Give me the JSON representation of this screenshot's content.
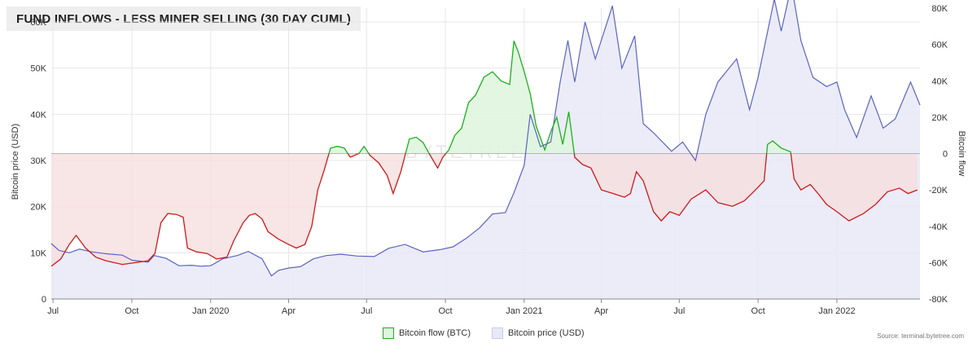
{
  "title": "FUND INFLOWS - LESS MINER SELLING (30 DAY CUML)",
  "watermark": "BYTETREE",
  "source": "Source: terminal.bytetree.com",
  "legend": {
    "flow_label": "Bitcoin flow (BTC)",
    "price_label": "Bitcoin price (USD)"
  },
  "colors": {
    "positive": "#1fae1f",
    "negative": "#cc1a1a",
    "price": "#5b63c0",
    "price_fill": "#e8e9f7",
    "pos_fill": "#dff5df",
    "neg_fill": "#f6dfdf"
  },
  "chart_data": {
    "type": "line",
    "title": "FUND INFLOWS - LESS MINER SELLING (30 DAY CUML)",
    "x_ticks": [
      "Jul",
      "Oct",
      "Jan 2020",
      "Apr",
      "Jul",
      "Oct",
      "Jan 2021",
      "Apr",
      "Jul",
      "Oct",
      "Jan 2022"
    ],
    "x_tick_dates": [
      "2019-07-01",
      "2019-10-01",
      "2020-01-01",
      "2020-04-01",
      "2020-07-01",
      "2020-10-01",
      "2021-01-01",
      "2021-04-01",
      "2021-07-01",
      "2021-10-01",
      "2022-01-01"
    ],
    "x_range": [
      "2019-06-29",
      "2022-04-08"
    ],
    "left_axis": {
      "label": "Bitcoin price (USD)",
      "ticks": [
        "0",
        "10K",
        "20K",
        "30K",
        "40K",
        "50K",
        "60K"
      ],
      "range": [
        0,
        63000
      ]
    },
    "right_axis": {
      "label": "Bitcoin flow",
      "ticks": [
        "-80K",
        "-60K",
        "-40K",
        "-20K",
        "0",
        "20K",
        "40K",
        "60K",
        "80K"
      ],
      "range": [
        -80000,
        80000
      ]
    },
    "grid": true,
    "legend_position": "bottom-center",
    "series": [
      {
        "name": "Bitcoin flow (BTC)",
        "axis": "right",
        "points": [
          [
            "2019-06-29",
            -62000
          ],
          [
            "2019-07-10",
            -58000
          ],
          [
            "2019-07-20",
            -50000
          ],
          [
            "2019-07-28",
            -45000
          ],
          [
            "2019-08-08",
            -52000
          ],
          [
            "2019-08-20",
            -57000
          ],
          [
            "2019-09-01",
            -59000
          ],
          [
            "2019-09-20",
            -61000
          ],
          [
            "2019-10-05",
            -60000
          ],
          [
            "2019-10-20",
            -59000
          ],
          [
            "2019-10-28",
            -55000
          ],
          [
            "2019-11-04",
            -38000
          ],
          [
            "2019-11-12",
            -33000
          ],
          [
            "2019-11-22",
            -33500
          ],
          [
            "2019-11-30",
            -35000
          ],
          [
            "2019-12-05",
            -52000
          ],
          [
            "2019-12-15",
            -54000
          ],
          [
            "2019-12-28",
            -55000
          ],
          [
            "2020-01-08",
            -58000
          ],
          [
            "2020-01-20",
            -57000
          ],
          [
            "2020-01-28",
            -48000
          ],
          [
            "2020-02-08",
            -38000
          ],
          [
            "2020-02-15",
            -34000
          ],
          [
            "2020-02-22",
            -33000
          ],
          [
            "2020-03-01",
            -36000
          ],
          [
            "2020-03-08",
            -43000
          ],
          [
            "2020-03-20",
            -47000
          ],
          [
            "2020-04-01",
            -50000
          ],
          [
            "2020-04-10",
            -52000
          ],
          [
            "2020-04-20",
            -50000
          ],
          [
            "2020-04-28",
            -40000
          ],
          [
            "2020-05-05",
            -20000
          ],
          [
            "2020-05-12",
            -10000
          ],
          [
            "2020-05-20",
            3000
          ],
          [
            "2020-05-28",
            4000
          ],
          [
            "2020-06-05",
            3000
          ],
          [
            "2020-06-12",
            -2000
          ],
          [
            "2020-06-22",
            0
          ],
          [
            "2020-06-28",
            4000
          ],
          [
            "2020-07-05",
            -1000
          ],
          [
            "2020-07-15",
            -5000
          ],
          [
            "2020-07-25",
            -12000
          ],
          [
            "2020-08-01",
            -22000
          ],
          [
            "2020-08-10",
            -10000
          ],
          [
            "2020-08-20",
            8000
          ],
          [
            "2020-08-28",
            9000
          ],
          [
            "2020-09-05",
            6000
          ],
          [
            "2020-09-12",
            0
          ],
          [
            "2020-09-22",
            -8000
          ],
          [
            "2020-09-28",
            -2000
          ],
          [
            "2020-10-05",
            2000
          ],
          [
            "2020-10-12",
            10000
          ],
          [
            "2020-10-20",
            14000
          ],
          [
            "2020-10-28",
            28000
          ],
          [
            "2020-11-05",
            32000
          ],
          [
            "2020-11-15",
            42000
          ],
          [
            "2020-11-25",
            45000
          ],
          [
            "2020-12-05",
            40000
          ],
          [
            "2020-12-15",
            38000
          ],
          [
            "2020-12-20",
            62000
          ],
          [
            "2020-12-25",
            56000
          ],
          [
            "2021-01-01",
            45000
          ],
          [
            "2021-01-08",
            33000
          ],
          [
            "2021-01-15",
            15000
          ],
          [
            "2021-01-25",
            2000
          ],
          [
            "2021-02-01",
            12000
          ],
          [
            "2021-02-08",
            20000
          ],
          [
            "2021-02-15",
            5000
          ],
          [
            "2021-02-22",
            23000
          ],
          [
            "2021-03-01",
            -2000
          ],
          [
            "2021-03-10",
            -6000
          ],
          [
            "2021-03-20",
            -8000
          ],
          [
            "2021-04-01",
            -20000
          ],
          [
            "2021-04-15",
            -22000
          ],
          [
            "2021-04-28",
            -24000
          ],
          [
            "2021-05-05",
            -22000
          ],
          [
            "2021-05-12",
            -10000
          ],
          [
            "2021-05-20",
            -15000
          ],
          [
            "2021-06-01",
            -32000
          ],
          [
            "2021-06-10",
            -37000
          ],
          [
            "2021-06-20",
            -32000
          ],
          [
            "2021-07-01",
            -34000
          ],
          [
            "2021-07-15",
            -25000
          ],
          [
            "2021-08-01",
            -20000
          ],
          [
            "2021-08-15",
            -27000
          ],
          [
            "2021-09-01",
            -29000
          ],
          [
            "2021-09-15",
            -26000
          ],
          [
            "2021-09-28",
            -20000
          ],
          [
            "2021-10-08",
            -15000
          ],
          [
            "2021-10-12",
            5000
          ],
          [
            "2021-10-18",
            7000
          ],
          [
            "2021-10-28",
            3000
          ],
          [
            "2021-11-08",
            1000
          ],
          [
            "2021-11-12",
            -14000
          ],
          [
            "2021-11-20",
            -20000
          ],
          [
            "2021-12-01",
            -17000
          ],
          [
            "2021-12-10",
            -22000
          ],
          [
            "2021-12-20",
            -28000
          ],
          [
            "2022-01-01",
            -32000
          ],
          [
            "2022-01-15",
            -37000
          ],
          [
            "2022-02-01",
            -33000
          ],
          [
            "2022-02-15",
            -28000
          ],
          [
            "2022-03-01",
            -21000
          ],
          [
            "2022-03-15",
            -19000
          ],
          [
            "2022-03-25",
            -22000
          ],
          [
            "2022-04-05",
            -20000
          ]
        ]
      },
      {
        "name": "Bitcoin price (USD)",
        "axis": "left",
        "points": [
          [
            "2019-06-29",
            12000
          ],
          [
            "2019-07-08",
            10500
          ],
          [
            "2019-07-20",
            10000
          ],
          [
            "2019-08-01",
            10800
          ],
          [
            "2019-08-15",
            10200
          ],
          [
            "2019-09-01",
            9800
          ],
          [
            "2019-09-20",
            9500
          ],
          [
            "2019-10-01",
            8400
          ],
          [
            "2019-10-20",
            8000
          ],
          [
            "2019-10-27",
            9400
          ],
          [
            "2019-11-10",
            8800
          ],
          [
            "2019-11-25",
            7200
          ],
          [
            "2019-12-10",
            7300
          ],
          [
            "2019-12-20",
            7100
          ],
          [
            "2020-01-01",
            7200
          ],
          [
            "2020-01-15",
            8700
          ],
          [
            "2020-02-01",
            9400
          ],
          [
            "2020-02-14",
            10300
          ],
          [
            "2020-03-01",
            8700
          ],
          [
            "2020-03-12",
            5000
          ],
          [
            "2020-03-20",
            6200
          ],
          [
            "2020-04-01",
            6700
          ],
          [
            "2020-04-15",
            7000
          ],
          [
            "2020-04-30",
            8700
          ],
          [
            "2020-05-15",
            9400
          ],
          [
            "2020-06-01",
            9700
          ],
          [
            "2020-06-20",
            9300
          ],
          [
            "2020-07-10",
            9200
          ],
          [
            "2020-07-27",
            11000
          ],
          [
            "2020-08-15",
            11800
          ],
          [
            "2020-09-05",
            10200
          ],
          [
            "2020-09-25",
            10700
          ],
          [
            "2020-10-10",
            11300
          ],
          [
            "2020-10-25",
            13100
          ],
          [
            "2020-11-10",
            15400
          ],
          [
            "2020-11-25",
            18400
          ],
          [
            "2020-12-10",
            18700
          ],
          [
            "2020-12-20",
            23000
          ],
          [
            "2021-01-01",
            29000
          ],
          [
            "2021-01-08",
            40000
          ],
          [
            "2021-01-20",
            33000
          ],
          [
            "2021-02-01",
            34000
          ],
          [
            "2021-02-12",
            47000
          ],
          [
            "2021-02-21",
            56000
          ],
          [
            "2021-03-01",
            47000
          ],
          [
            "2021-03-13",
            60000
          ],
          [
            "2021-03-25",
            52000
          ],
          [
            "2021-04-14",
            63500
          ],
          [
            "2021-04-25",
            50000
          ],
          [
            "2021-05-10",
            57000
          ],
          [
            "2021-05-20",
            38000
          ],
          [
            "2021-06-01",
            36000
          ],
          [
            "2021-06-22",
            32000
          ],
          [
            "2021-07-05",
            34000
          ],
          [
            "2021-07-20",
            30000
          ],
          [
            "2021-08-01",
            40000
          ],
          [
            "2021-08-15",
            47000
          ],
          [
            "2021-09-06",
            52000
          ],
          [
            "2021-09-21",
            41000
          ],
          [
            "2021-10-01",
            48000
          ],
          [
            "2021-10-20",
            65000
          ],
          [
            "2021-10-28",
            58000
          ],
          [
            "2021-11-09",
            68000
          ],
          [
            "2021-11-20",
            56000
          ],
          [
            "2021-12-04",
            48000
          ],
          [
            "2021-12-20",
            46000
          ],
          [
            "2022-01-01",
            47000
          ],
          [
            "2022-01-10",
            41000
          ],
          [
            "2022-01-24",
            35000
          ],
          [
            "2022-02-10",
            44000
          ],
          [
            "2022-02-24",
            37000
          ],
          [
            "2022-03-10",
            39000
          ],
          [
            "2022-03-28",
            47000
          ],
          [
            "2022-04-08",
            42000
          ]
        ]
      }
    ]
  }
}
